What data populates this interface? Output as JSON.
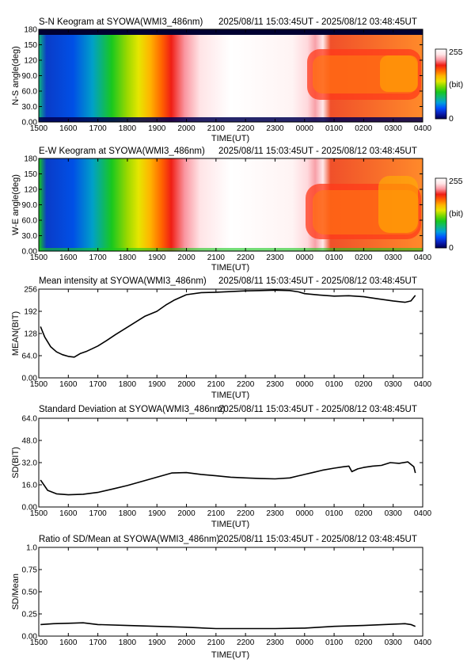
{
  "colors": {
    "keogram_scale": [
      "#000050",
      "#0a1eb4",
      "#0050ff",
      "#00a0dc",
      "#10b87a",
      "#18c81e",
      "#7ad800",
      "#e6e600",
      "#ffb400",
      "#ff6400",
      "#f01e14",
      "#fa96a0",
      "#ffe4e6",
      "#ffffff"
    ],
    "line": "#000000"
  },
  "chart_data": [
    {
      "id": "sn",
      "type": "heatmap",
      "title": "S-N Keogram at SYOWA(WMI3_486nm)",
      "time_range": "2025/08/11 15:03:45UT - 2025/08/12 03:48:45UT",
      "xlabel": "TIME(UT)",
      "ylabel": "N-S angle(deg)",
      "x_tick_labels": [
        "1500",
        "1600",
        "1700",
        "1800",
        "1900",
        "2000",
        "2100",
        "2200",
        "2300",
        "0000",
        "0100",
        "0200",
        "0300",
        "0400"
      ],
      "x_ticks": [
        0,
        1,
        2,
        3,
        4,
        5,
        6,
        7,
        8,
        9,
        10,
        11,
        12,
        13
      ],
      "xlim": [
        0,
        13
      ],
      "y_tick_labels": [
        "0.00",
        "30.0",
        "60.0",
        "90.0",
        "120",
        "150",
        "180"
      ],
      "y_ticks": [
        0,
        30,
        60,
        90,
        120,
        150,
        180
      ],
      "ylim": [
        0,
        180
      ],
      "colorbar": {
        "min_label": "0",
        "max_label": "255",
        "unit": "(bit)"
      }
    },
    {
      "id": "ew",
      "type": "heatmap",
      "title": "E-W Keogram at SYOWA(WMI3_486nm)",
      "time_range": "2025/08/11 15:03:45UT - 2025/08/12 03:48:45UT",
      "xlabel": "TIME(UT)",
      "ylabel": "W-E angle(deg)",
      "x_tick_labels": [
        "1500",
        "1600",
        "1700",
        "1800",
        "1900",
        "2000",
        "2100",
        "2200",
        "2300",
        "0000",
        "0100",
        "0200",
        "0300",
        "0400"
      ],
      "x_ticks": [
        0,
        1,
        2,
        3,
        4,
        5,
        6,
        7,
        8,
        9,
        10,
        11,
        12,
        13
      ],
      "xlim": [
        0,
        13
      ],
      "y_tick_labels": [
        "0.00",
        "30.0",
        "60.0",
        "90.0",
        "120",
        "150",
        "180"
      ],
      "y_ticks": [
        0,
        30,
        60,
        90,
        120,
        150,
        180
      ],
      "ylim": [
        0,
        180
      ],
      "colorbar": {
        "min_label": "0",
        "max_label": "255",
        "unit": "(bit)"
      }
    },
    {
      "id": "mean",
      "type": "line",
      "title": "Mean intensity at SYOWA(WMI3_486nm)",
      "time_range": "2025/08/11 15:03:45UT - 2025/08/12 03:48:45UT",
      "xlabel": "TIME(UT)",
      "ylabel": "MEAN(BIT)",
      "x_tick_labels": [
        "1500",
        "1600",
        "1700",
        "1800",
        "1900",
        "2000",
        "2100",
        "2200",
        "2300",
        "0000",
        "0100",
        "0200",
        "0300",
        "0400"
      ],
      "x_ticks": [
        0,
        1,
        2,
        3,
        4,
        5,
        6,
        7,
        8,
        9,
        10,
        11,
        12,
        13
      ],
      "xlim": [
        0,
        13
      ],
      "y_tick_labels": [
        "0.00",
        "64.0",
        "128",
        "192",
        "256"
      ],
      "y_ticks": [
        0,
        64,
        128,
        192,
        256
      ],
      "ylim": [
        0,
        256
      ],
      "x": [
        0.06,
        0.2,
        0.4,
        0.6,
        0.8,
        1.0,
        1.2,
        1.4,
        1.6,
        1.8,
        2.0,
        2.3,
        2.6,
        3.0,
        3.3,
        3.6,
        4.0,
        4.3,
        4.6,
        5.0,
        5.5,
        6.0,
        6.5,
        7.0,
        7.5,
        8.0,
        8.5,
        8.8,
        9.0,
        9.5,
        10.0,
        10.5,
        11.0,
        11.5,
        12.0,
        12.4,
        12.6,
        12.75
      ],
      "y": [
        148,
        118,
        90,
        75,
        67,
        62,
        60,
        70,
        76,
        84,
        92,
        108,
        125,
        146,
        162,
        178,
        192,
        210,
        225,
        240,
        246,
        247,
        249,
        251,
        252,
        253,
        252,
        248,
        243,
        239,
        236,
        237,
        234,
        228,
        222,
        218,
        222,
        238
      ]
    },
    {
      "id": "sd",
      "type": "line",
      "title": "Standard Deviation at SYOWA(WMI3_486nm)",
      "time_range": "2025/08/11 15:03:45UT - 2025/08/12 03:48:45UT",
      "xlabel": "TIME(UT)",
      "ylabel": "SD(BIT)",
      "x_tick_labels": [
        "1500",
        "1600",
        "1700",
        "1800",
        "1900",
        "2000",
        "2100",
        "2200",
        "2300",
        "0000",
        "0100",
        "0200",
        "0300",
        "0400"
      ],
      "x_ticks": [
        0,
        1,
        2,
        3,
        4,
        5,
        6,
        7,
        8,
        9,
        10,
        11,
        12,
        13
      ],
      "xlim": [
        0,
        13
      ],
      "y_tick_labels": [
        "0.00",
        "16.0",
        "32.0",
        "48.0",
        "64.0"
      ],
      "y_ticks": [
        0,
        16,
        32,
        48,
        64
      ],
      "ylim": [
        0,
        64
      ],
      "x": [
        0.06,
        0.3,
        0.6,
        1.0,
        1.5,
        2.0,
        2.5,
        3.0,
        3.5,
        4.0,
        4.5,
        5.0,
        5.5,
        6.0,
        6.5,
        7.0,
        7.5,
        8.0,
        8.5,
        8.8,
        9.0,
        9.3,
        9.6,
        10.0,
        10.3,
        10.5,
        10.6,
        10.8,
        11.0,
        11.3,
        11.6,
        11.9,
        12.2,
        12.5,
        12.7,
        12.75
      ],
      "y": [
        19.5,
        12,
        9.5,
        8.8,
        9.2,
        10.5,
        13,
        15.5,
        18.5,
        21.5,
        24.5,
        24.8,
        23.5,
        22.5,
        21.5,
        21,
        20.5,
        20.3,
        21,
        22.5,
        23.5,
        25,
        26.5,
        28,
        29,
        29.5,
        25.5,
        27.5,
        28.5,
        29.5,
        30,
        32,
        31.5,
        32.5,
        29,
        24.5
      ]
    },
    {
      "id": "ratio",
      "type": "line",
      "title": "Ratio of SD/Mean at SYOWA(WMI3_486nm)",
      "time_range": "2025/08/11 15:03:45UT - 2025/08/12 03:48:45UT",
      "xlabel": "TIME(UT)",
      "ylabel": "SD/Mean",
      "x_tick_labels": [
        "1500",
        "1600",
        "1700",
        "1800",
        "1900",
        "2000",
        "2100",
        "2200",
        "2300",
        "0000",
        "0100",
        "0200",
        "0300",
        "0400"
      ],
      "x_ticks": [
        0,
        1,
        2,
        3,
        4,
        5,
        6,
        7,
        8,
        9,
        10,
        11,
        12,
        13
      ],
      "xlim": [
        0,
        13
      ],
      "y_tick_labels": [
        "0.00",
        "0.25",
        "0.50",
        "0.75",
        "1.0"
      ],
      "y_ticks": [
        0,
        0.25,
        0.5,
        0.75,
        1.0
      ],
      "ylim": [
        0,
        1
      ],
      "x": [
        0.06,
        0.5,
        1.0,
        1.5,
        2.0,
        3.0,
        4.0,
        5.0,
        6.0,
        7.0,
        8.0,
        9.0,
        10.0,
        11.0,
        12.0,
        12.4,
        12.6,
        12.75
      ],
      "y": [
        0.13,
        0.14,
        0.145,
        0.15,
        0.13,
        0.12,
        0.11,
        0.1,
        0.085,
        0.085,
        0.085,
        0.09,
        0.11,
        0.12,
        0.135,
        0.14,
        0.13,
        0.11
      ]
    }
  ]
}
